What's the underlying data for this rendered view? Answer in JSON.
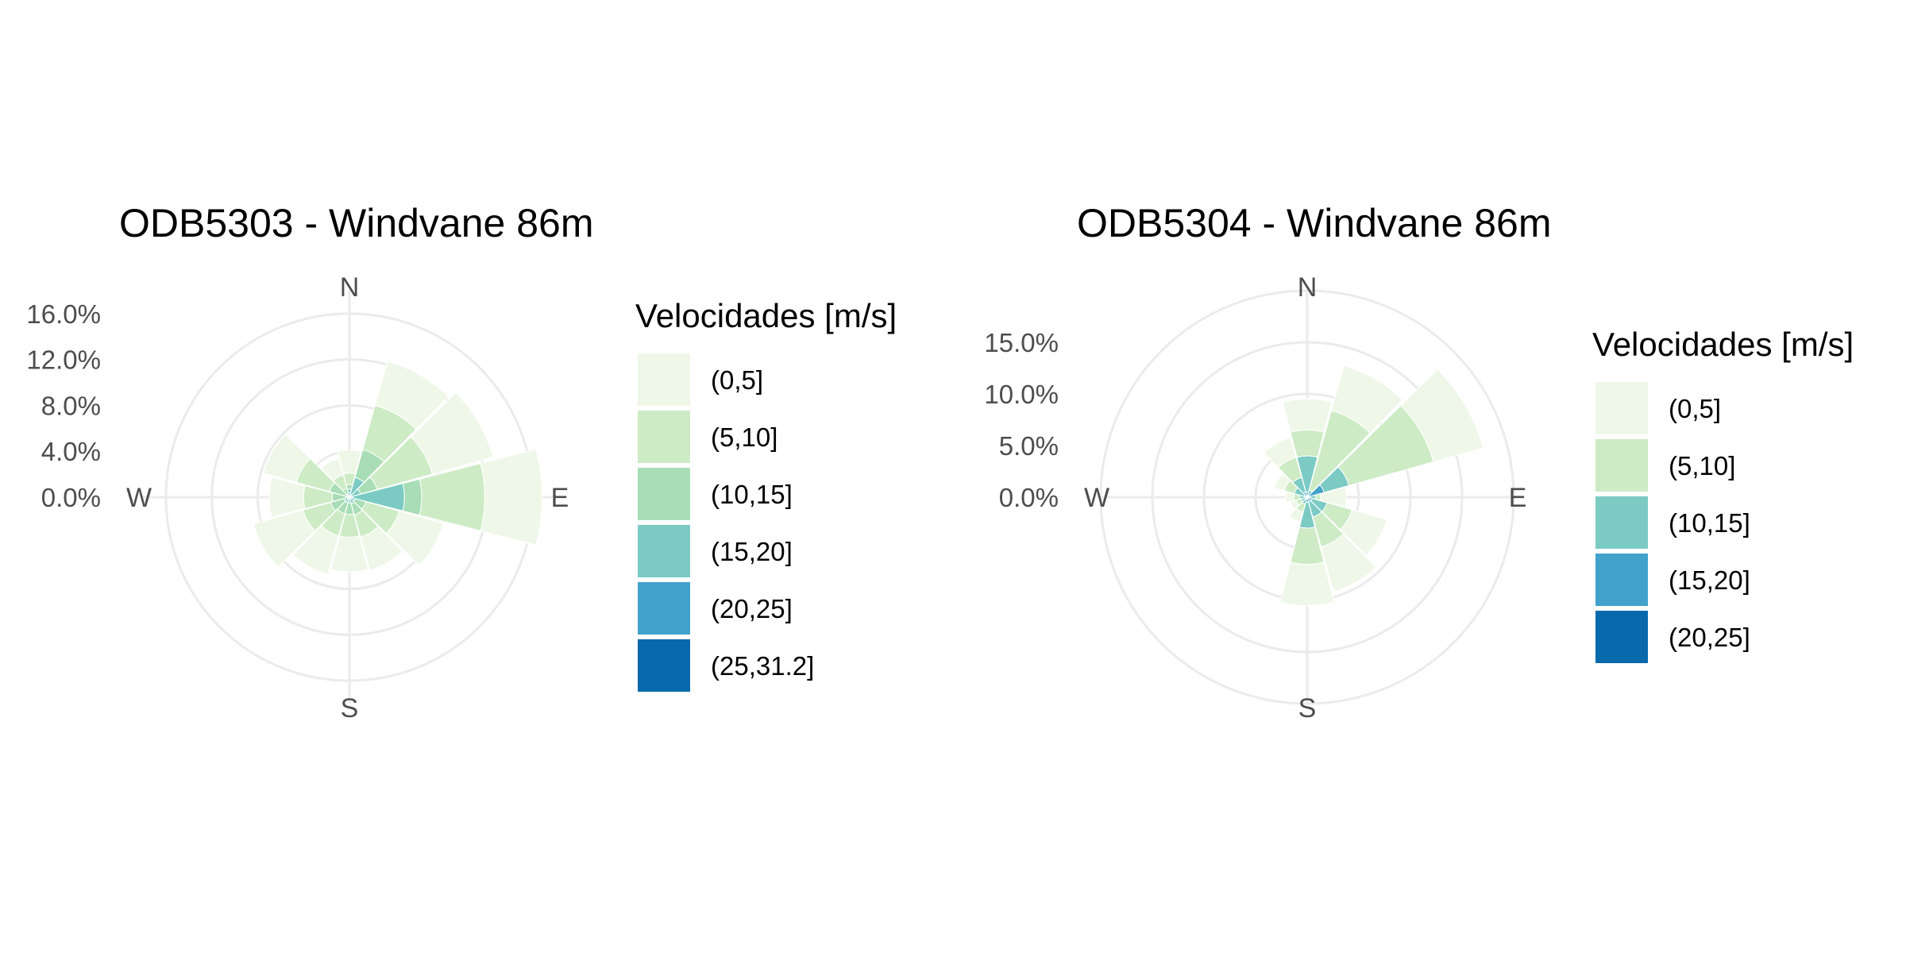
{
  "chart_data": [
    {
      "type": "polar-stacked-bar",
      "title": "ODB5303 - Windvane 86m",
      "rmax": 18,
      "grid_values": [
        4,
        8,
        12,
        16
      ],
      "radial_ticks": [
        "16.0%",
        "12.0%",
        "8.0%",
        "4.0%",
        "0.0%"
      ],
      "radial_tick_values": [
        16,
        12,
        8,
        4,
        0
      ],
      "directions": [
        "N",
        "E",
        "S",
        "W"
      ],
      "legend_title": "Velocidades [m/s]",
      "legend_labels": [
        "(0,5]",
        "(5,10]",
        "(10,15]",
        "(15,20]",
        "(20,25]",
        "(25,31.2]"
      ],
      "colors": [
        "#eff8e8",
        "#cdebc5",
        "#a8ddb5",
        "#7bcbc4",
        "#42a2cb",
        "#0869ac"
      ],
      "sector_angles": [
        0,
        30,
        60,
        90,
        120,
        150,
        180,
        210,
        240,
        270,
        300,
        330
      ],
      "sectors": [
        [
          2.0,
          1.0,
          0.4,
          0.3,
          0.3,
          0.1
        ],
        [
          4.0,
          4.0,
          2.5,
          1.5,
          0.3,
          0.0
        ],
        [
          5.5,
          5.0,
          1.5,
          0.8,
          0.2,
          0.0
        ],
        [
          5.0,
          5.5,
          1.5,
          4.5,
          0.3,
          0.0
        ],
        [
          4.0,
          3.0,
          1.0,
          0.4,
          0.1,
          0.0
        ],
        [
          3.0,
          2.0,
          1.0,
          0.5,
          0.1,
          0.0
        ],
        [
          3.0,
          2.0,
          1.0,
          0.5,
          0.0,
          0.0
        ],
        [
          3.5,
          2.0,
          1.0,
          0.5,
          0.0,
          0.0
        ],
        [
          4.5,
          2.5,
          1.2,
          0.5,
          0.0,
          0.0
        ],
        [
          3.0,
          2.5,
          1.2,
          0.3,
          0.0,
          0.0
        ],
        [
          3.0,
          3.0,
          1.5,
          0.3,
          0.0,
          0.0
        ],
        [
          1.5,
          1.2,
          0.5,
          0.3,
          0.0,
          0.0
        ]
      ]
    },
    {
      "type": "polar-stacked-bar",
      "title": "ODB5304 - Windvane 86m",
      "rmax": 20,
      "grid_values": [
        5,
        10,
        15,
        20
      ],
      "radial_ticks": [
        "15.0%",
        "10.0%",
        "5.0%",
        "0.0%"
      ],
      "radial_tick_values": [
        15,
        10,
        5,
        0
      ],
      "directions": [
        "N",
        "E",
        "S",
        "W"
      ],
      "legend_title": "Velocidades [m/s]",
      "legend_labels": [
        "(0,5]",
        "(5,10]",
        "(10,15]",
        "(15,20]",
        "(20,25]"
      ],
      "colors": [
        "#eff8e8",
        "#cdebc5",
        "#7bcbc4",
        "#42a2cb",
        "#0869ac"
      ],
      "sector_angles": [
        0,
        30,
        60,
        90,
        120,
        150,
        180,
        210,
        240,
        270,
        300,
        330
      ],
      "sectors": [
        [
          3.0,
          2.5,
          3.5,
          0.4,
          0.1
        ],
        [
          4.5,
          8.0,
          0.5,
          0.2,
          0.0
        ],
        [
          5.0,
          8.5,
          2.5,
          1.5,
          0.2
        ],
        [
          2.5,
          0.5,
          0.5,
          0.3,
          0.0
        ],
        [
          3.5,
          2.5,
          1.5,
          0.5,
          0.0
        ],
        [
          4.5,
          3.0,
          1.5,
          0.5,
          0.0
        ],
        [
          4.0,
          3.5,
          2.5,
          0.5,
          0.0
        ],
        [
          1.0,
          0.8,
          0.5,
          0.2,
          0.0
        ],
        [
          0.6,
          0.5,
          0.4,
          0.2,
          0.0
        ],
        [
          0.8,
          0.6,
          0.5,
          0.2,
          0.0
        ],
        [
          1.0,
          1.0,
          1.0,
          0.3,
          0.0
        ],
        [
          2.0,
          2.0,
          1.5,
          0.5,
          0.0
        ]
      ]
    }
  ]
}
